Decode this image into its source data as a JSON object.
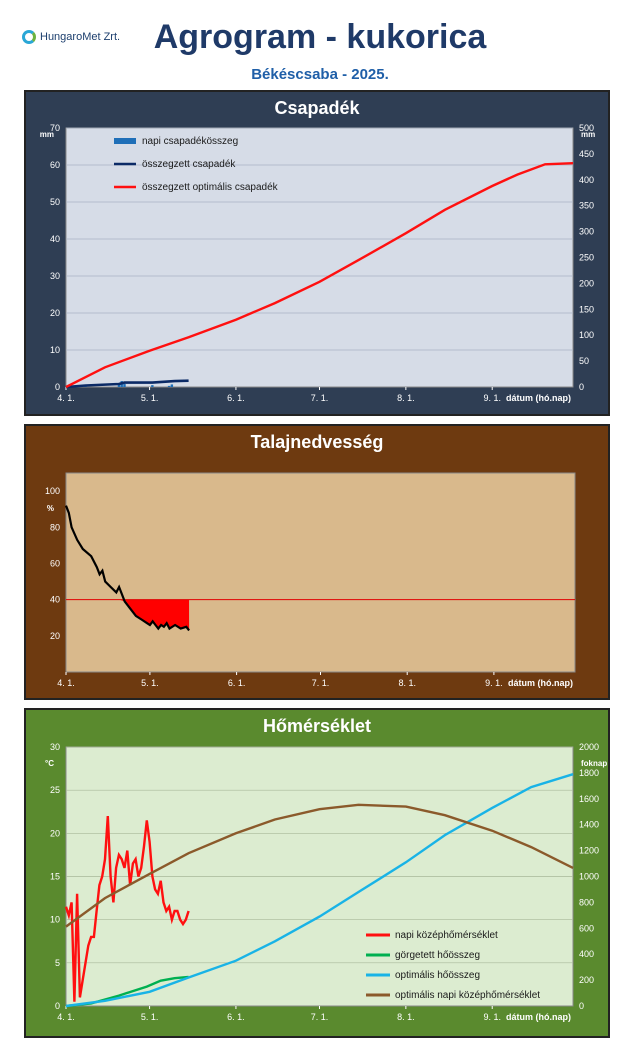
{
  "header": {
    "logo_text": "HungaroMet Zrt.",
    "title": "Agrogram - kukorica",
    "subtitle": "Békéscsaba - 2025."
  },
  "chart_data": [
    {
      "type": "line",
      "title": "Csapadék",
      "xlabel": "dátum (hó.nap)",
      "x_ticks": [
        "4. 1.",
        "5. 1.",
        "6. 1.",
        "7. 1.",
        "8. 1.",
        "9. 1."
      ],
      "y_unit": "mm",
      "y2_unit": "mm",
      "ylim": [
        0,
        70
      ],
      "y2lim": [
        0,
        500
      ],
      "y_ticks": [
        0,
        10,
        20,
        30,
        40,
        50,
        60,
        70
      ],
      "y2_ticks": [
        0,
        50,
        100,
        150,
        200,
        250,
        300,
        350,
        400,
        450,
        500
      ],
      "series": [
        {
          "name": "napi csapadékösszeg",
          "kind": "bar",
          "axis": "left",
          "color": "#1f6fb8",
          "x": [
            "04-08",
            "04-20",
            "04-21",
            "04-22",
            "05-02",
            "05-08",
            "05-09"
          ],
          "values": [
            0.4,
            0.6,
            1.6,
            0.8,
            0.5,
            0.3,
            0.7
          ]
        },
        {
          "name": "összegzett csapadék",
          "kind": "line",
          "axis": "left",
          "color": "#0b2a66",
          "x": [
            "04-01",
            "04-08",
            "04-20",
            "04-22",
            "05-02",
            "05-08",
            "05-10",
            "05-15"
          ],
          "values": [
            0,
            0.4,
            0.8,
            1.2,
            1.2,
            1.5,
            1.6,
            1.7
          ]
        },
        {
          "name": "összegzett optimális csapadék",
          "kind": "line",
          "axis": "right",
          "color": "#ff1010",
          "x": [
            "04-01",
            "04-15",
            "05-01",
            "05-15",
            "06-01",
            "06-15",
            "07-01",
            "07-15",
            "08-01",
            "08-15",
            "09-01",
            "09-10",
            "09-20",
            "09-30"
          ],
          "values": [
            0,
            38,
            70,
            96,
            130,
            162,
            203,
            245,
            297,
            342,
            388,
            410,
            430,
            432
          ]
        }
      ]
    },
    {
      "type": "line",
      "title": "Talajnedvesség",
      "xlabel": "dátum (hó.nap)",
      "x_ticks": [
        "4. 1.",
        "5. 1.",
        "6. 1.",
        "7. 1.",
        "8. 1.",
        "9. 1."
      ],
      "y_unit": "%",
      "ylim": [
        0,
        110
      ],
      "y_ticks": [
        20,
        40,
        60,
        80,
        100
      ],
      "threshold": 40,
      "series": [
        {
          "name": "talajnedvesség",
          "kind": "line",
          "color": "#000000",
          "x": [
            "04-01",
            "04-02",
            "04-03",
            "04-05",
            "04-07",
            "04-10",
            "04-12",
            "04-13",
            "04-14",
            "04-15",
            "04-17",
            "04-19",
            "04-20",
            "04-22",
            "04-24",
            "04-26",
            "04-28",
            "04-30",
            "05-01",
            "05-02",
            "05-03",
            "05-04",
            "05-05",
            "05-06",
            "05-07",
            "05-08",
            "05-10",
            "05-12",
            "05-14",
            "05-15"
          ],
          "values": [
            92,
            88,
            80,
            73,
            68,
            64,
            58,
            54,
            56,
            50,
            47,
            44,
            47,
            39,
            35,
            31,
            29,
            27,
            26,
            28,
            26,
            24,
            26,
            25,
            27,
            24,
            26,
            24,
            25,
            23
          ]
        }
      ]
    },
    {
      "type": "line",
      "title": "Hőmérséklet",
      "xlabel": "dátum (hó.nap)",
      "x_ticks": [
        "4. 1.",
        "5. 1.",
        "6. 1.",
        "7. 1.",
        "8. 1.",
        "9. 1."
      ],
      "y_unit": "°C",
      "y2_unit": "foknap",
      "ylim": [
        0,
        30
      ],
      "y2lim": [
        0,
        2000
      ],
      "y_ticks": [
        0,
        5,
        10,
        15,
        20,
        25,
        30
      ],
      "y2_ticks": [
        0,
        200,
        400,
        600,
        800,
        1000,
        1200,
        1400,
        1600,
        1800,
        2000
      ],
      "series": [
        {
          "name": "napi középhőmérséklet",
          "kind": "line",
          "axis": "left",
          "color": "#ff1010",
          "x": [
            "04-01",
            "04-02",
            "04-03",
            "04-04",
            "04-05",
            "04-06",
            "04-07",
            "04-08",
            "04-09",
            "04-10",
            "04-11",
            "04-12",
            "04-13",
            "04-14",
            "04-15",
            "04-16",
            "04-17",
            "04-18",
            "04-19",
            "04-20",
            "04-21",
            "04-22",
            "04-23",
            "04-24",
            "04-25",
            "04-26",
            "04-27",
            "04-28",
            "04-29",
            "04-30",
            "05-01",
            "05-02",
            "05-03",
            "05-04",
            "05-05",
            "05-06",
            "05-07",
            "05-08",
            "05-09",
            "05-10",
            "05-11",
            "05-12",
            "05-13",
            "05-14",
            "05-15"
          ],
          "values": [
            11.5,
            10.5,
            12,
            0.5,
            13,
            1,
            3,
            5,
            7,
            8,
            8,
            11,
            14,
            15,
            17,
            22,
            15,
            12,
            16,
            17.5,
            17,
            16,
            18,
            14,
            16.5,
            17,
            15,
            16,
            18.5,
            21.5,
            19,
            15,
            13.5,
            13,
            14.5,
            12,
            11,
            11.5,
            10,
            11,
            11,
            10,
            9.5,
            10,
            11
          ]
        },
        {
          "name": "görgetett hőösszeg",
          "kind": "line",
          "axis": "right",
          "color": "#00b050",
          "x": [
            "04-01",
            "04-10",
            "04-20",
            "04-30",
            "05-05",
            "05-10",
            "05-15"
          ],
          "values": [
            0,
            20,
            80,
            150,
            195,
            215,
            225
          ]
        },
        {
          "name": "optimális hőösszeg",
          "kind": "line",
          "axis": "right",
          "color": "#19b3e6",
          "x": [
            "04-01",
            "04-15",
            "05-01",
            "05-15",
            "06-01",
            "06-15",
            "07-01",
            "07-15",
            "08-01",
            "08-15",
            "09-01",
            "09-15",
            "09-30"
          ],
          "values": [
            0,
            40,
            110,
            220,
            350,
            500,
            690,
            880,
            1110,
            1320,
            1530,
            1690,
            1790
          ]
        },
        {
          "name": "optimális napi középhőmérséklet",
          "kind": "line",
          "axis": "left",
          "color": "#8b5a2b",
          "x": [
            "04-01",
            "04-15",
            "05-01",
            "05-15",
            "06-01",
            "06-15",
            "07-01",
            "07-15",
            "08-01",
            "08-15",
            "09-01",
            "09-15",
            "09-30"
          ],
          "values": [
            9.2,
            12.5,
            15.3,
            17.7,
            20.0,
            21.6,
            22.8,
            23.3,
            23.1,
            22.1,
            20.3,
            18.4,
            16.0
          ]
        }
      ]
    }
  ]
}
